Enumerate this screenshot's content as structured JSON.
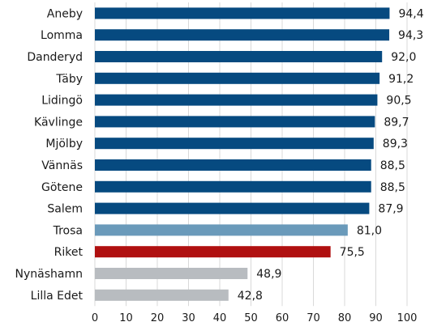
{
  "chart_data": {
    "type": "bar",
    "orientation": "horizontal",
    "title": "",
    "xlabel": "",
    "ylabel": "",
    "xlim": [
      0,
      100
    ],
    "x_ticks": [
      "0",
      "10",
      "20",
      "30",
      "40",
      "50",
      "60",
      "70",
      "80",
      "90",
      "100"
    ],
    "grid": true,
    "legend": "none",
    "categories": [
      "Aneby",
      "Lomma",
      "Danderyd",
      "Täby",
      "Lidingö",
      "Kävlinge",
      "Mjölby",
      "Vännäs",
      "Götene",
      "Salem",
      "Trosa",
      "Riket",
      "Nynäshamn",
      "Lilla Edet"
    ],
    "values": [
      94.4,
      94.3,
      92.0,
      91.2,
      90.5,
      89.7,
      89.3,
      88.5,
      88.5,
      87.9,
      81.0,
      75.5,
      48.9,
      42.8
    ],
    "value_labels": [
      "94,4",
      "94,3",
      "92,0",
      "91,2",
      "90,5",
      "89,7",
      "89,3",
      "88,5",
      "88,5",
      "87,9",
      "81,0",
      "75,5",
      "48,9",
      "42,8"
    ],
    "bar_colors": [
      "#064a80",
      "#064a80",
      "#064a80",
      "#064a80",
      "#064a80",
      "#064a80",
      "#064a80",
      "#064a80",
      "#064a80",
      "#064a80",
      "#6a9aba",
      "#b01010",
      "#b8bcc0",
      "#b8bcc0"
    ],
    "grid_color": "#d9d9d9"
  }
}
